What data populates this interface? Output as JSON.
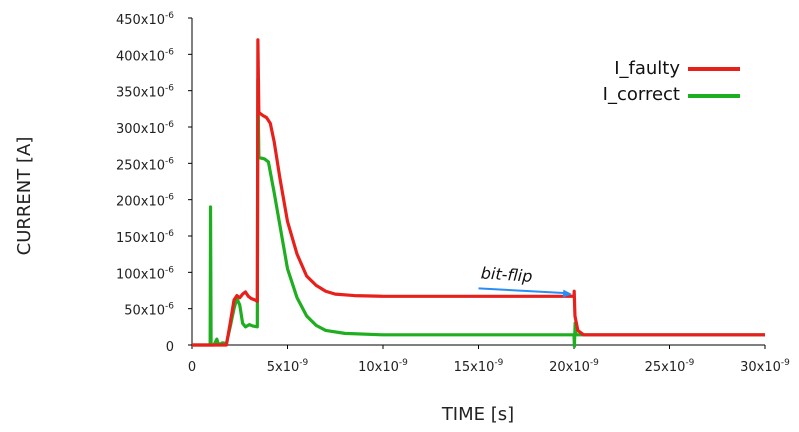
{
  "chart_data": {
    "type": "line",
    "xlabel": "TIME [s]",
    "ylabel": "CURRENT [A]",
    "xlim": [
      0,
      3e-08
    ],
    "ylim": [
      0,
      0.00045
    ],
    "x_ticks": [
      {
        "value": 0,
        "label": "0"
      },
      {
        "value": 5e-09,
        "label": "5x10",
        "exp": "-9"
      },
      {
        "value": 1e-08,
        "label": "10x10",
        "exp": "-9"
      },
      {
        "value": 1.5e-08,
        "label": "15x10",
        "exp": "-9"
      },
      {
        "value": 2e-08,
        "label": "20x10",
        "exp": "-9"
      },
      {
        "value": 2.5e-08,
        "label": "25x10",
        "exp": "-9"
      },
      {
        "value": 3e-08,
        "label": "30x10",
        "exp": "-9"
      }
    ],
    "y_ticks": [
      {
        "value": 0,
        "label": "0"
      },
      {
        "value": 5e-05,
        "label": "50x10",
        "exp": "-6"
      },
      {
        "value": 0.0001,
        "label": "100x10",
        "exp": "-6"
      },
      {
        "value": 0.00015,
        "label": "150x10",
        "exp": "-6"
      },
      {
        "value": 0.0002,
        "label": "200x10",
        "exp": "-6"
      },
      {
        "value": 0.00025,
        "label": "250x10",
        "exp": "-6"
      },
      {
        "value": 0.0003,
        "label": "300x10",
        "exp": "-6"
      },
      {
        "value": 0.00035,
        "label": "350x10",
        "exp": "-6"
      },
      {
        "value": 0.0004,
        "label": "400x10",
        "exp": "-6"
      },
      {
        "value": 0.00045,
        "label": "450x10",
        "exp": "-6"
      }
    ],
    "legend": {
      "placement": "top-right"
    },
    "series": [
      {
        "name": "I_faulty",
        "color": "#e8201c",
        "points": [
          [
            0,
            0
          ],
          [
            8.5e-10,
            0
          ],
          [
            8.7e-10,
            0.0
          ],
          [
            9e-10,
            0.0
          ],
          [
            1e-09,
            0.0
          ],
          [
            1.1e-09,
            0.0
          ],
          [
            1.2e-09,
            0.0
          ],
          [
            1.35e-09,
            0.0
          ],
          [
            1.5e-09,
            0.0
          ],
          [
            1.6e-09,
            0.0
          ],
          [
            1.8e-09,
            0.0
          ],
          [
            2e-09,
            3e-05
          ],
          [
            2.2e-09,
            6.2e-05
          ],
          [
            2.35e-09,
            6.8e-05
          ],
          [
            2.5e-09,
            6.5e-05
          ],
          [
            2.65e-09,
            7e-05
          ],
          [
            2.8e-09,
            7.3e-05
          ],
          [
            2.95e-09,
            6.7e-05
          ],
          [
            3.1e-09,
            6.4e-05
          ],
          [
            3.3e-09,
            6.2e-05
          ],
          [
            3.42e-09,
            6e-05
          ],
          [
            3.45e-09,
            0.00042
          ],
          [
            3.5e-09,
            0.00032
          ],
          [
            3.7e-09,
            0.000316
          ],
          [
            3.9e-09,
            0.000313
          ],
          [
            4.1e-09,
            0.000305
          ],
          [
            4.3e-09,
            0.00028
          ],
          [
            4.6e-09,
            0.00023
          ],
          [
            5e-09,
            0.00017
          ],
          [
            5.5e-09,
            0.000125
          ],
          [
            6e-09,
            9.5e-05
          ],
          [
            6.5e-09,
            8.2e-05
          ],
          [
            7e-09,
            7.4e-05
          ],
          [
            7.5e-09,
            7e-05
          ],
          [
            8.5e-09,
            6.8e-05
          ],
          [
            1e-08,
            6.7e-05
          ],
          [
            1.5e-08,
            6.7e-05
          ],
          [
            1.98e-08,
            6.7e-05
          ],
          [
            2e-08,
            6.7e-05
          ],
          [
            2.001e-08,
            7.4e-05
          ],
          [
            2.005e-08,
            4e-05
          ],
          [
            2.02e-08,
            2e-05
          ],
          [
            2.05e-08,
            1.4e-05
          ],
          [
            2.1e-08,
            1.4e-05
          ],
          [
            2.5e-08,
            1.4e-05
          ],
          [
            3e-08,
            1.4e-05
          ]
        ]
      },
      {
        "name": "I_correct",
        "color": "#1fae1f",
        "points": [
          [
            0,
            0
          ],
          [
            9.5e-10,
            0
          ],
          [
            9.7e-10,
            0.00019
          ],
          [
            1e-09,
            0.0
          ],
          [
            1.15e-09,
            0.0
          ],
          [
            1.3e-09,
            8e-06
          ],
          [
            1.4e-09,
            0.0
          ],
          [
            1.6e-09,
            3e-06
          ],
          [
            1.8e-09,
            2e-06
          ],
          [
            2e-09,
            2.5e-05
          ],
          [
            2.2e-09,
            5e-05
          ],
          [
            2.35e-09,
            6.4e-05
          ],
          [
            2.5e-09,
            5.5e-05
          ],
          [
            2.65e-09,
            3e-05
          ],
          [
            2.8e-09,
            2.5e-05
          ],
          [
            3e-09,
            2.8e-05
          ],
          [
            3.2e-09,
            2.6e-05
          ],
          [
            3.42e-09,
            2.5e-05
          ],
          [
            3.45e-09,
            0.000365
          ],
          [
            3.5e-09,
            0.000258
          ],
          [
            3.8e-09,
            0.000256
          ],
          [
            4e-09,
            0.000252
          ],
          [
            4.3e-09,
            0.00021
          ],
          [
            4.7e-09,
            0.00015
          ],
          [
            5e-09,
            0.000105
          ],
          [
            5.5e-09,
            6.5e-05
          ],
          [
            6e-09,
            4e-05
          ],
          [
            6.5e-09,
            2.7e-05
          ],
          [
            7e-09,
            2e-05
          ],
          [
            8e-09,
            1.6e-05
          ],
          [
            1e-08,
            1.4e-05
          ],
          [
            1.5e-08,
            1.4e-05
          ],
          [
            1.98e-08,
            1.4e-05
          ],
          [
            2e-08,
            1.4e-05
          ],
          [
            2.002e-08,
            -2e-06
          ],
          [
            2.006e-08,
            3e-05
          ],
          [
            2.01e-08,
            1.4e-05
          ],
          [
            2.5e-08,
            1.4e-05
          ],
          [
            3e-08,
            1.4e-05
          ]
        ]
      }
    ],
    "annotations": [
      {
        "text": "bit-flip",
        "arrow_from": [
          1.5e-08,
          7.8e-05
        ],
        "arrow_to": [
          1.99e-08,
          7e-05
        ],
        "color": "#2a8ef0"
      }
    ]
  }
}
